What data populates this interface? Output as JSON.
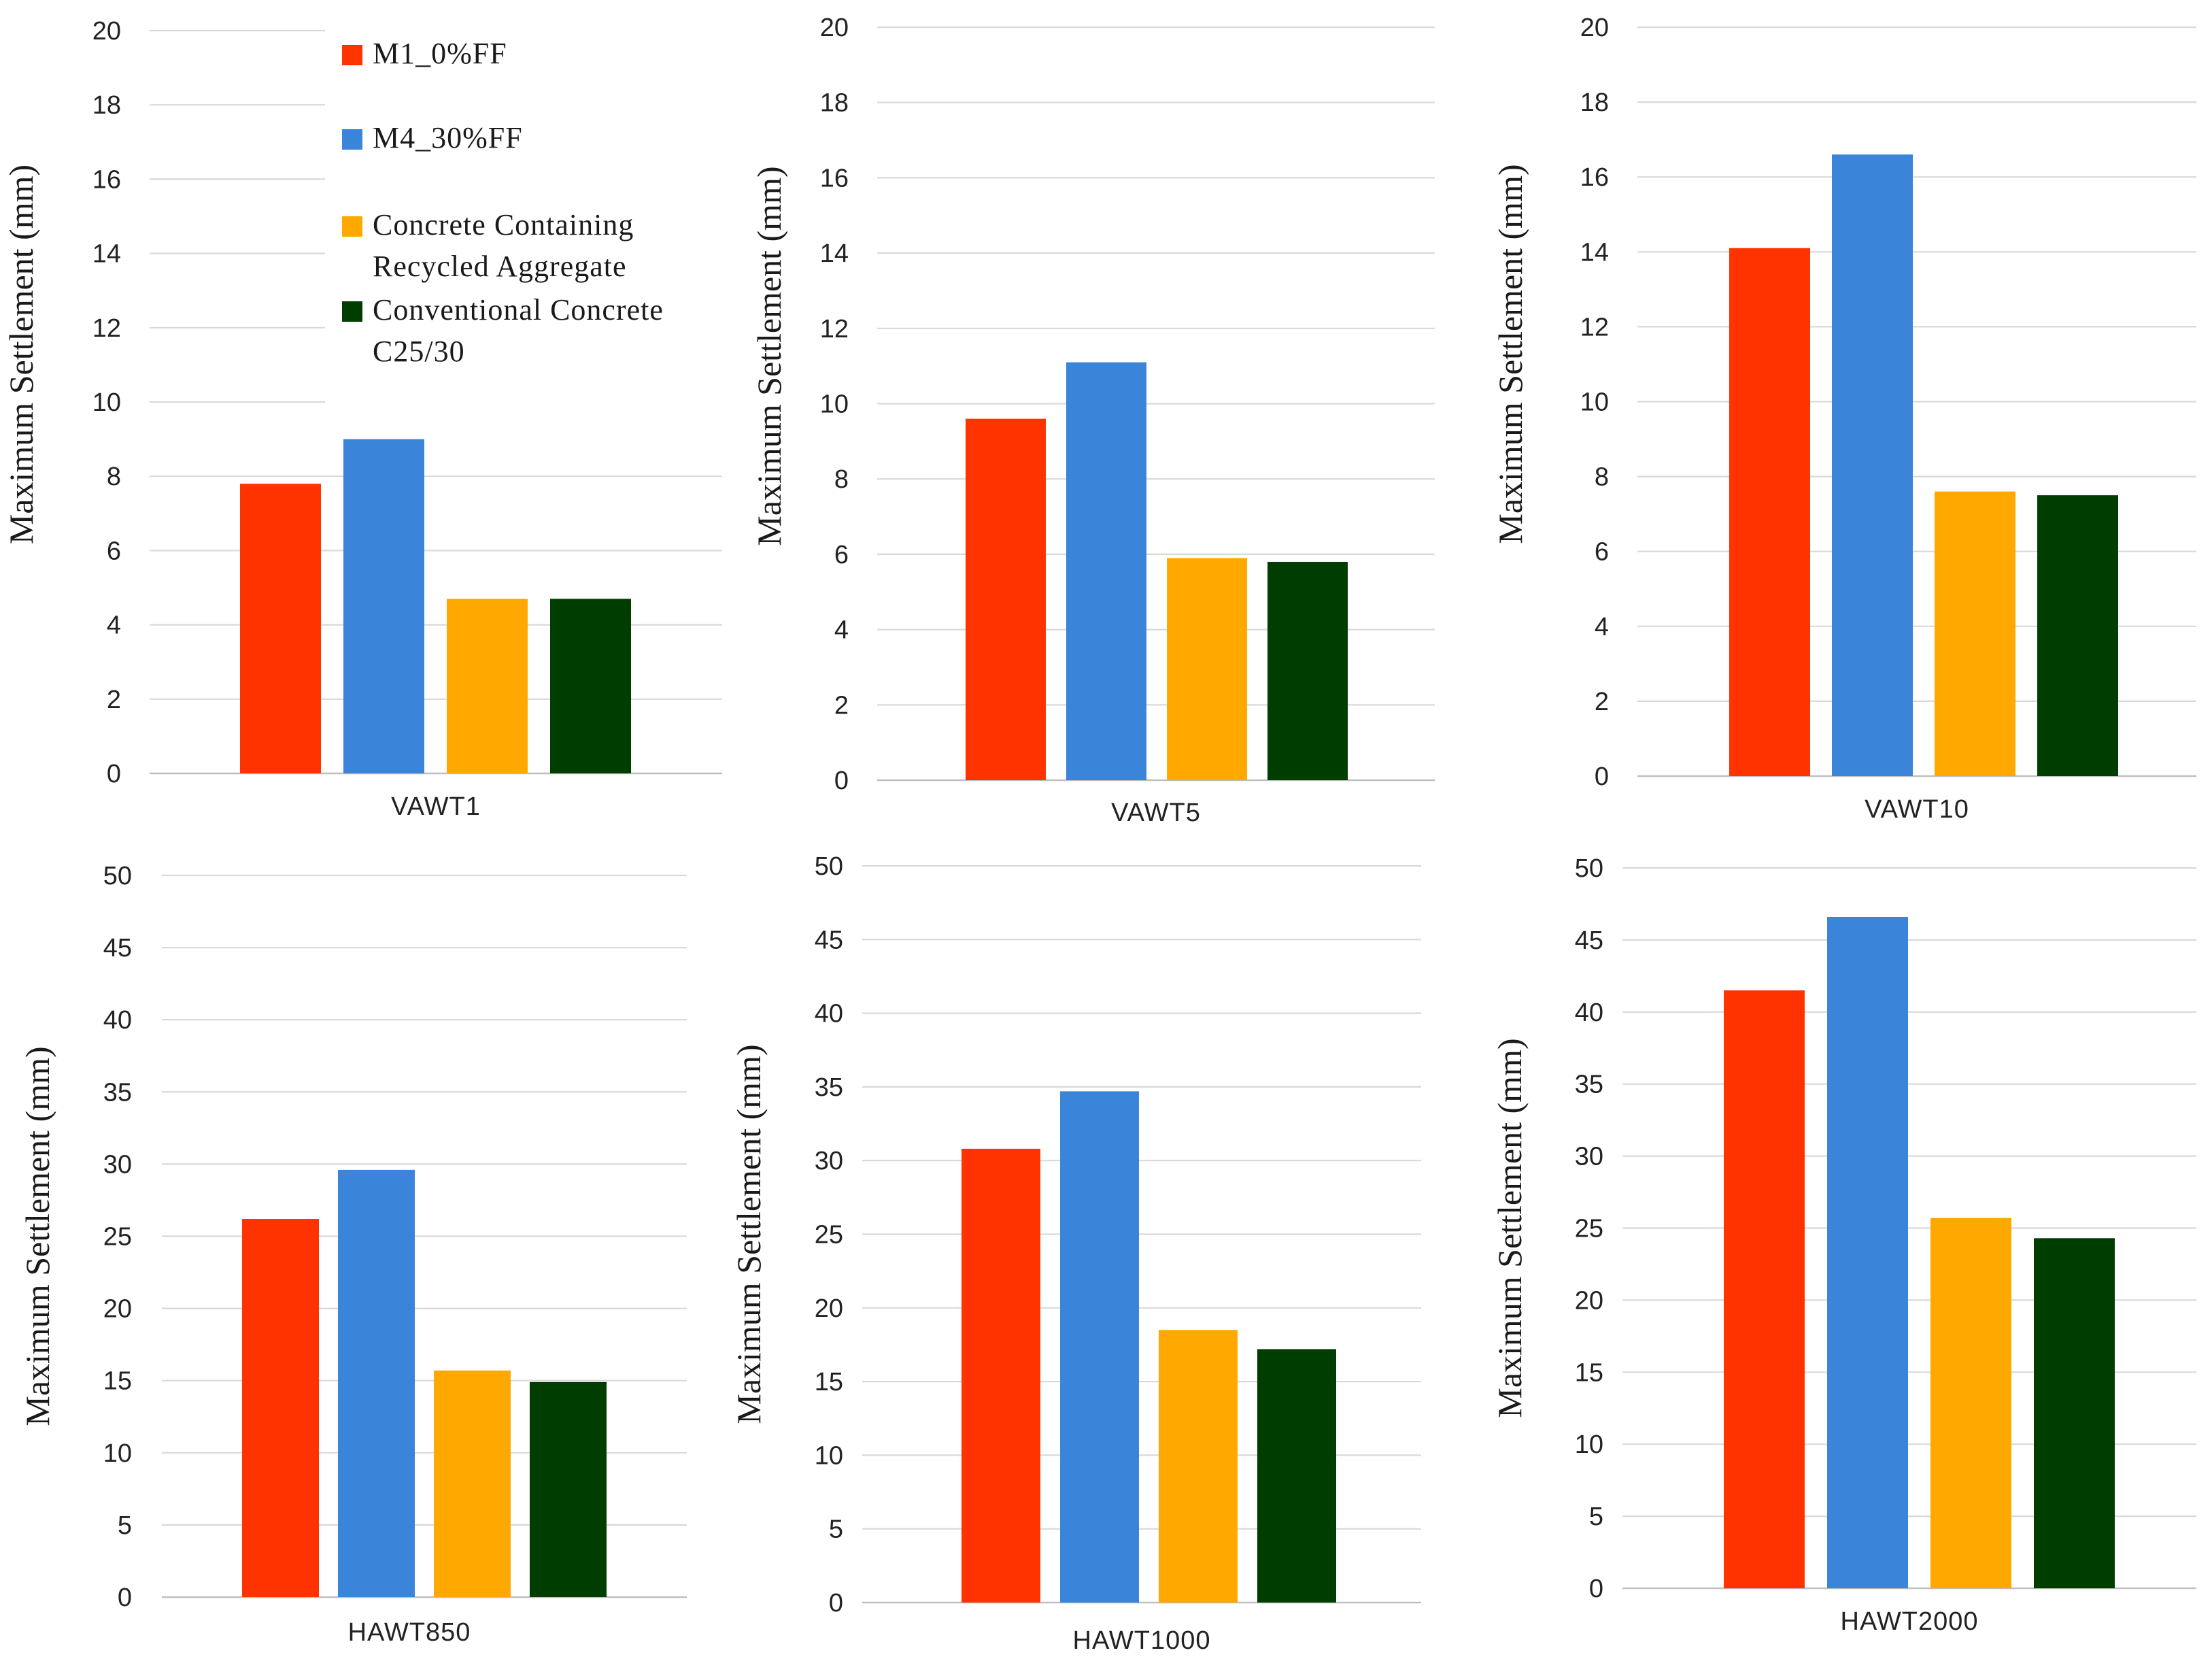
{
  "chart_data": [
    {
      "type": "bar",
      "categories": [
        "VAWT1"
      ],
      "ylabel": "Maximum Settlement (mm)",
      "ylim": [
        0,
        20
      ],
      "yticks": [
        0,
        2,
        4,
        6,
        8,
        10,
        12,
        14,
        16,
        18,
        20
      ],
      "grid": true,
      "legend": "top-right",
      "series": [
        {
          "name": "M1_0%FF",
          "values": [
            7.8
          ]
        },
        {
          "name": "M4_30%FF",
          "values": [
            9.0
          ]
        },
        {
          "name": "Concrete Containing Recycled Aggregate",
          "values": [
            4.7
          ]
        },
        {
          "name": "Conventional Concrete C25/30",
          "values": [
            4.7
          ]
        }
      ]
    },
    {
      "type": "bar",
      "categories": [
        "VAWT5"
      ],
      "ylabel": "Maximum Settlement (mm)",
      "ylim": [
        0,
        20
      ],
      "yticks": [
        0,
        2,
        4,
        6,
        8,
        10,
        12,
        14,
        16,
        18,
        20
      ],
      "grid": true,
      "series": [
        {
          "values": [
            9.6
          ]
        },
        {
          "values": [
            11.1
          ]
        },
        {
          "values": [
            5.9
          ]
        },
        {
          "values": [
            5.8
          ]
        }
      ]
    },
    {
      "type": "bar",
      "categories": [
        "VAWT10"
      ],
      "ylabel": "Maximum Settlement (mm)",
      "ylim": [
        0,
        20
      ],
      "yticks": [
        0,
        2,
        4,
        6,
        8,
        10,
        12,
        14,
        16,
        18,
        20
      ],
      "grid": true,
      "series": [
        {
          "values": [
            14.1
          ]
        },
        {
          "values": [
            16.6
          ]
        },
        {
          "values": [
            7.6
          ]
        },
        {
          "values": [
            7.5
          ]
        }
      ]
    },
    {
      "type": "bar",
      "categories": [
        "HAWT850"
      ],
      "ylabel": "Maximum Settlement (mm)",
      "ylim": [
        0,
        50
      ],
      "yticks": [
        0,
        5,
        10,
        15,
        20,
        25,
        30,
        35,
        40,
        45,
        50
      ],
      "grid": true,
      "series": [
        {
          "values": [
            26.2
          ]
        },
        {
          "values": [
            29.6
          ]
        },
        {
          "values": [
            15.7
          ]
        },
        {
          "values": [
            14.9
          ]
        }
      ]
    },
    {
      "type": "bar",
      "categories": [
        "HAWT1000"
      ],
      "ylabel": "Maximum Settlement (mm)",
      "ylim": [
        0,
        50
      ],
      "yticks": [
        0,
        5,
        10,
        15,
        20,
        25,
        30,
        35,
        40,
        45,
        50
      ],
      "grid": true,
      "series": [
        {
          "values": [
            30.8
          ]
        },
        {
          "values": [
            34.7
          ]
        },
        {
          "values": [
            18.5
          ]
        },
        {
          "values": [
            17.2
          ]
        }
      ]
    },
    {
      "type": "bar",
      "categories": [
        "HAWT2000"
      ],
      "ylabel": "Maximum Settlement (mm)",
      "ylim": [
        0,
        50
      ],
      "yticks": [
        0,
        5,
        10,
        15,
        20,
        25,
        30,
        35,
        40,
        45,
        50
      ],
      "grid": true,
      "series": [
        {
          "values": [
            41.5
          ]
        },
        {
          "values": [
            46.6
          ]
        },
        {
          "values": [
            25.7
          ]
        },
        {
          "values": [
            24.3
          ]
        }
      ]
    }
  ],
  "legend": {
    "items": [
      {
        "lines": [
          "M1_0%FF"
        ],
        "color": "#ff3300"
      },
      {
        "lines": [
          "M4_30%FF"
        ],
        "color": "#3a85d9"
      },
      {
        "lines": [
          "Concrete Containing",
          "Recycled Aggregate"
        ],
        "color": "#ffa800"
      },
      {
        "lines": [
          "Conventional Concrete",
          "C25/30"
        ],
        "color": "#003d00"
      }
    ]
  },
  "colors": [
    "#ff3300",
    "#3a85d9",
    "#ffa800",
    "#003d00"
  ]
}
